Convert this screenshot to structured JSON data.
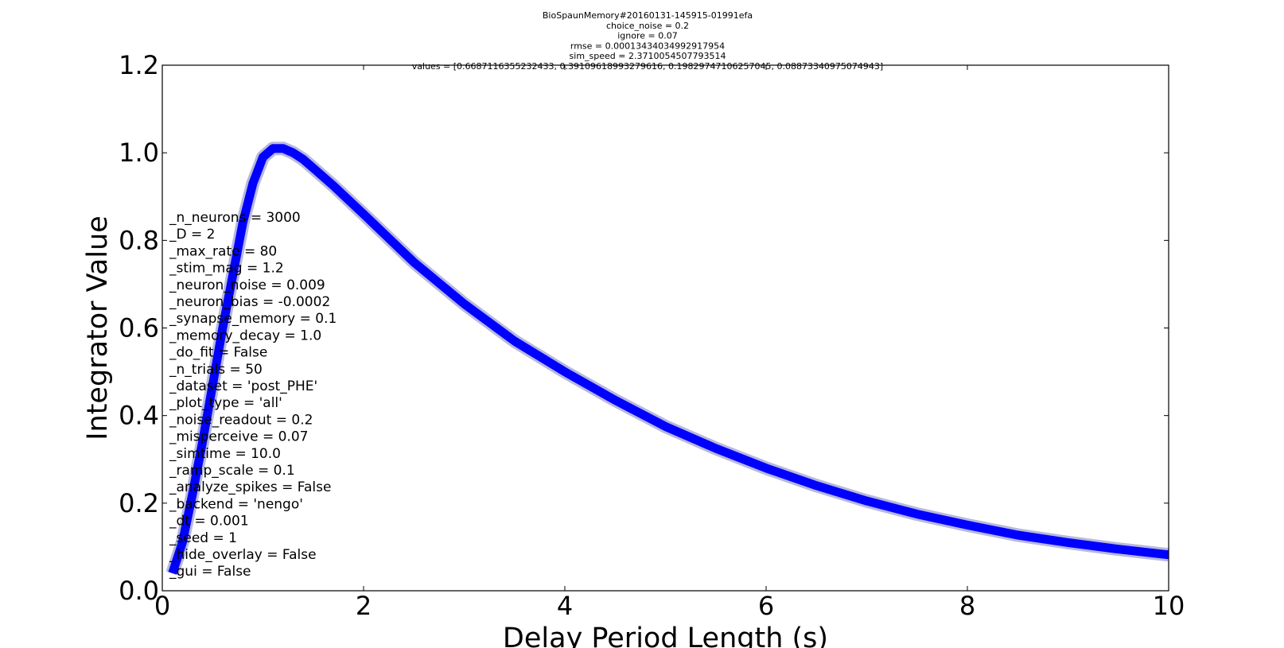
{
  "chart_data": {
    "type": "line",
    "title_lines": [
      "BioSpaunMemory#20160131-145915-01991efa",
      "choice_noise = 0.2",
      "ignore = 0.07",
      "rmse = 0.00013434034992917954",
      "sim_speed = 2.3710054507793514",
      "values = [0.6687116355232433, 0.39109618993279616, 0.19829747106257045, 0.08873340975074943]"
    ],
    "xlabel": "Delay Period Length (s)",
    "ylabel": "Integrator Value",
    "xlim": [
      0,
      10
    ],
    "ylim": [
      0.0,
      1.2
    ],
    "xticks": [
      0,
      2,
      4,
      6,
      8,
      10
    ],
    "xtick_labels": [
      "0",
      "2",
      "4",
      "6",
      "8",
      "10"
    ],
    "yticks": [
      0.0,
      0.2,
      0.4,
      0.6,
      0.8,
      1.0,
      1.2
    ],
    "ytick_labels": [
      "0.0",
      "0.2",
      "0.4",
      "0.6",
      "0.8",
      "1.0",
      "1.2"
    ],
    "grid": false,
    "series": [
      {
        "color": "#0000ff",
        "band_color": "#9a9ad0",
        "x": [
          0.1,
          0.2,
          0.3,
          0.4,
          0.5,
          0.6,
          0.7,
          0.8,
          0.9,
          1.0,
          1.1,
          1.2,
          1.3,
          1.4,
          1.5,
          1.7,
          2.0,
          2.5,
          3.0,
          3.5,
          4.0,
          4.5,
          5.0,
          5.5,
          6.0,
          6.5,
          7.0,
          7.5,
          8.0,
          8.5,
          9.0,
          9.5,
          10.0
        ],
        "y": [
          0.04,
          0.11,
          0.22,
          0.34,
          0.47,
          0.6,
          0.72,
          0.84,
          0.93,
          0.99,
          1.01,
          1.01,
          1.0,
          0.985,
          0.965,
          0.925,
          0.86,
          0.75,
          0.655,
          0.57,
          0.5,
          0.435,
          0.375,
          0.325,
          0.28,
          0.24,
          0.205,
          0.175,
          0.15,
          0.127,
          0.11,
          0.095,
          0.082
        ]
      }
    ],
    "annotation_lines": [
      "_n_neurons = 3000",
      "_D = 2",
      "_max_rate = 80",
      "_stim_mag = 1.2",
      "_neuron_noise = 0.009",
      "_neuron_bias = -0.0002",
      "_synapse_memory = 0.1",
      "_memory_decay = 1.0",
      "_do_fit = False",
      "_n_trials = 50",
      "_dataset = 'post_PHE'",
      "_plot_type = 'all'",
      "_noise_readout = 0.2",
      "_misperceive = 0.07",
      "_simtime = 10.0",
      "_ramp_scale = 0.1",
      "_analyze_spikes = False",
      "_backend = 'nengo'",
      "_dt = 0.001",
      "_seed = 1",
      "_hide_overlay = False",
      "_gui = False"
    ]
  }
}
